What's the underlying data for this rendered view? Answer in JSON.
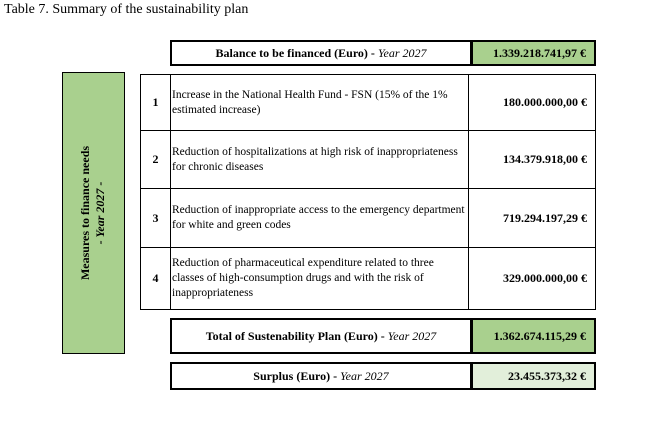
{
  "caption": "Table 7. Summary of the sustainability plan",
  "balance": {
    "label": "Balance to be financed (Euro) - ",
    "year": "Year 2027",
    "value": "1.339.218.741,97 €"
  },
  "side_label": {
    "line1": "Measures to finance needs",
    "line2": "- Year 2027 -"
  },
  "measures": [
    {
      "num": "1",
      "desc": "Increase in the National Health Fund - FSN (15% of the 1% estimated increase)",
      "value": "180.000.000,00 €"
    },
    {
      "num": "2",
      "desc": "Reduction of hospitalizations at high risk of inappropriateness for chronic diseases",
      "value": "134.379.918,00 €"
    },
    {
      "num": "3",
      "desc": "Reduction of inappropriate access to the emergency department for white and green codes",
      "value": "719.294.197,29 €"
    },
    {
      "num": "4",
      "desc": "Reduction of pharmaceutical expenditure related to three classes of high-consumption drugs and with the risk of inappropriateness",
      "value": "329.000.000,00 €"
    }
  ],
  "total": {
    "label": "Total of Sustenability Plan (Euro) - ",
    "year": "Year 2027",
    "value": "1.362.674.115,29 €"
  },
  "surplus": {
    "label": "Surplus  (Euro) - ",
    "year": "Year 2027",
    "value": "23.455.373,32 €"
  }
}
